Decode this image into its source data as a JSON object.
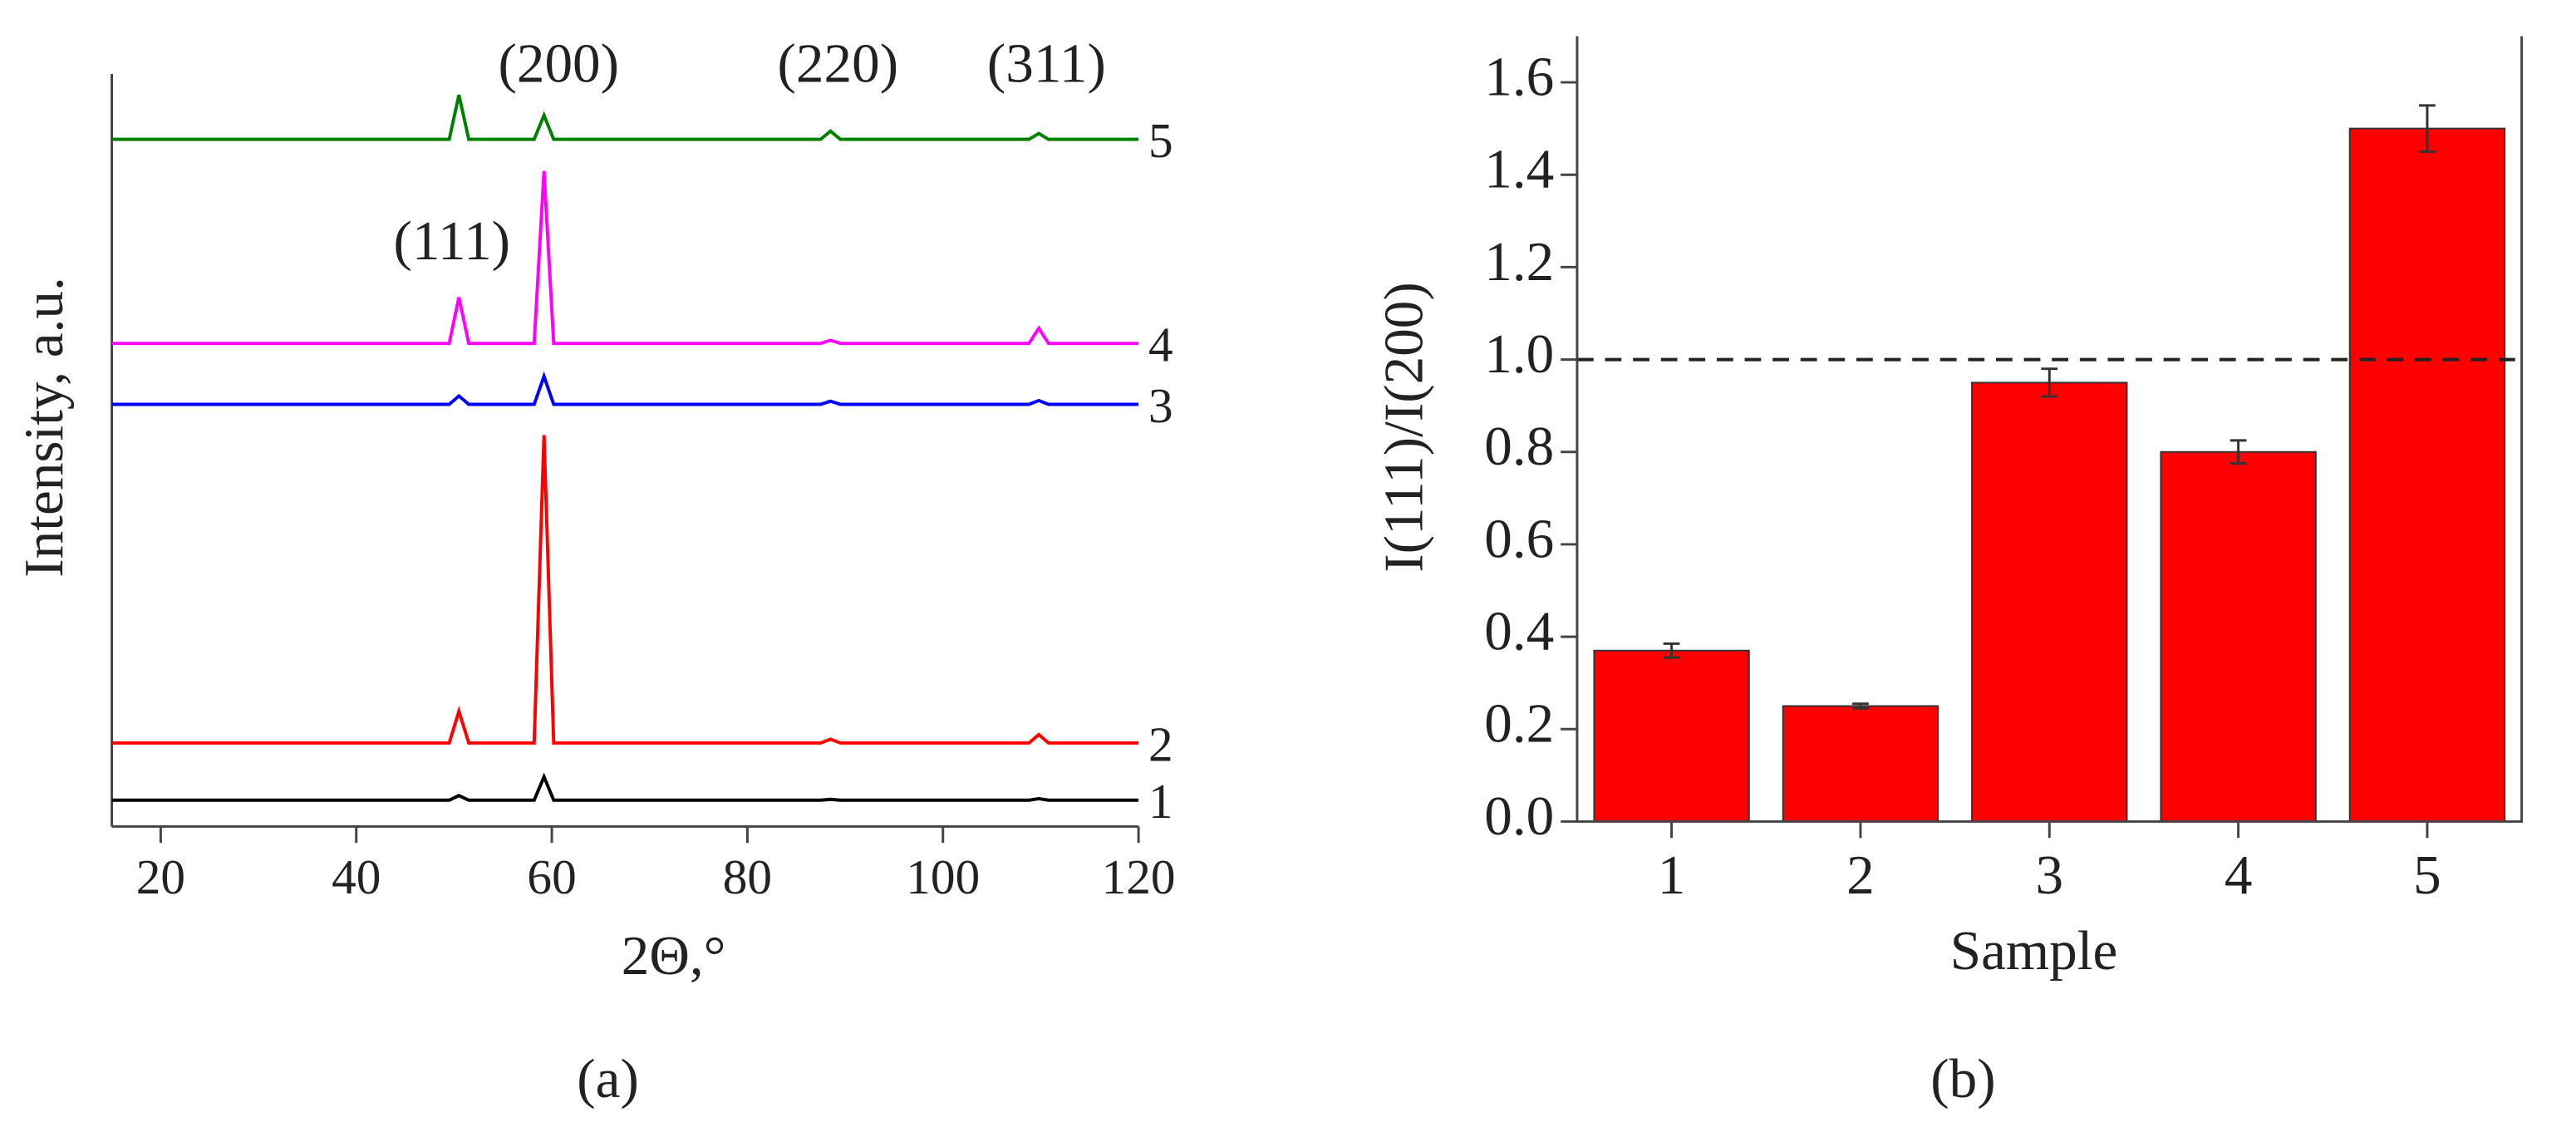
{
  "chart_data": [
    {
      "type": "line",
      "caption": "(a)",
      "xlabel": "2Θ,°",
      "ylabel": "Intensity, a.u.",
      "annotations": [
        "(111)",
        "(200)",
        "(220)",
        "(311)"
      ],
      "x": [
        15,
        49.5,
        50.5,
        51.5,
        58.2,
        59.2,
        60.2,
        87.5,
        88.5,
        89.5,
        108.8,
        109.8,
        110.8,
        120
      ],
      "xlim": [
        15,
        120
      ],
      "xticks": [
        20,
        40,
        60,
        80,
        100,
        120
      ],
      "ylim": [
        0,
        100
      ],
      "series": [
        {
          "name": "1",
          "color": "#000000",
          "values": [
            3.5,
            3.5,
            4.1,
            3.5,
            3.5,
            6.6,
            3.5,
            3.5,
            3.6,
            3.5,
            3.5,
            3.7,
            3.5,
            3.5
          ]
        },
        {
          "name": "2",
          "color": "#ff0000",
          "values": [
            11.1,
            11.1,
            15.3,
            11.1,
            11.1,
            52,
            11.1,
            11.1,
            11.6,
            11.1,
            11.1,
            12.2,
            11.1,
            11.1
          ]
        },
        {
          "name": "3",
          "color": "#0000ff",
          "values": [
            56.1,
            56.1,
            57.2,
            56.1,
            56.1,
            59.8,
            56.1,
            56.1,
            56.5,
            56.1,
            56.1,
            56.6,
            56.1,
            56.1
          ]
        },
        {
          "name": "4",
          "color": "#ff00ff",
          "values": [
            64.2,
            64.2,
            70.3,
            64.2,
            64.2,
            87.1,
            64.2,
            64.2,
            64.6,
            64.2,
            64.2,
            66.2,
            64.2,
            64.2
          ]
        },
        {
          "name": "5",
          "color": "#008000",
          "values": [
            91.3,
            91.3,
            97.2,
            91.3,
            91.3,
            94.5,
            91.3,
            91.3,
            92.4,
            91.3,
            91.3,
            92.1,
            91.3,
            91.3
          ]
        }
      ]
    },
    {
      "type": "bar",
      "caption": "(b)",
      "xlabel": "Sample",
      "ylabel": "I(111)/I(200)",
      "categories": [
        "1",
        "2",
        "3",
        "4",
        "5"
      ],
      "values": [
        0.37,
        0.25,
        0.95,
        0.8,
        1.5
      ],
      "errors": [
        0.015,
        0.005,
        0.03,
        0.025,
        0.05
      ],
      "color": "#ff0000",
      "hline": 1.0,
      "ylim": [
        0,
        1.7
      ],
      "yticks": [
        {
          "value": 0,
          "label": "0.0"
        },
        {
          "value": 0.2,
          "label": "0.2"
        },
        {
          "value": 0.4,
          "label": "0.4"
        },
        {
          "value": 0.6,
          "label": "0.6"
        },
        {
          "value": 0.8,
          "label": "0.8"
        },
        {
          "value": 1,
          "label": "1.0"
        },
        {
          "value": 1.2,
          "label": "1.2"
        },
        {
          "value": 1.4,
          "label": "1.4"
        },
        {
          "value": 1.6,
          "label": "1.6"
        }
      ]
    }
  ]
}
